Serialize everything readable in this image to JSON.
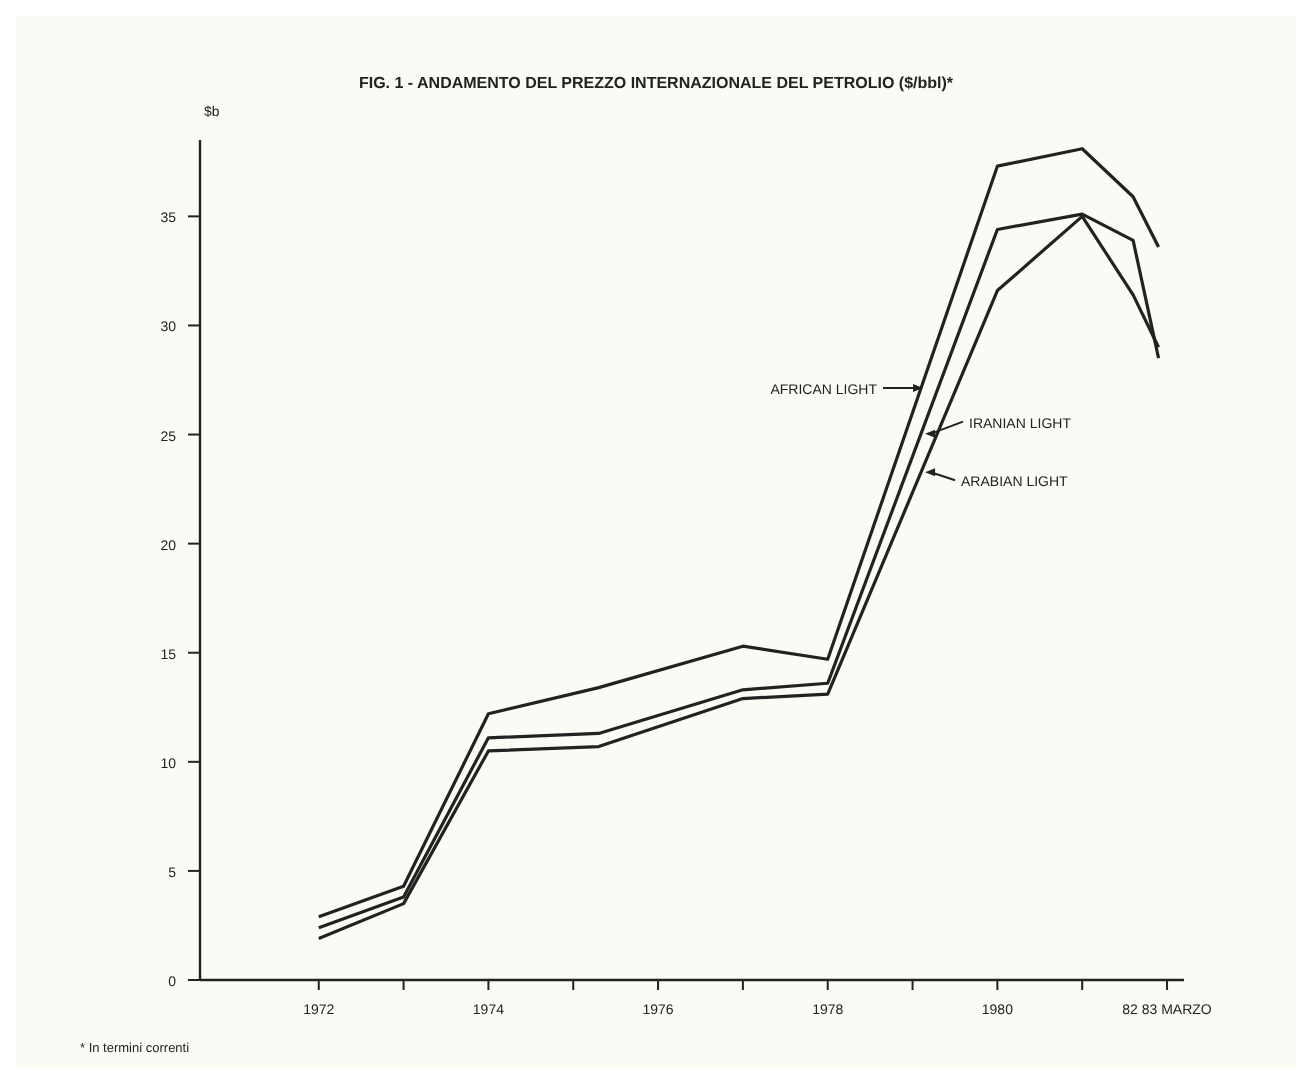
{
  "chart_data": {
    "type": "line",
    "title": "FIG. 1  - ANDAMENTO DEL PREZZO INTERNAZIONALE DEL PETROLIO ($/bbl)*",
    "ylabel": "$b",
    "annotations": [
      "* In termini correnti"
    ],
    "x": [
      1972,
      1973,
      1974,
      1975.3,
      1977,
      1978,
      1980,
      1981,
      1981.6,
      1981.9
    ],
    "series": [
      {
        "name": "AFRICAN LIGHT",
        "color": "#222222",
        "values": [
          2.9,
          4.3,
          12.2,
          13.4,
          15.3,
          14.7,
          37.3,
          38.1,
          35.9,
          33.6
        ]
      },
      {
        "name": "IRANIAN LIGHT",
        "color": "#222222",
        "values": [
          2.4,
          3.8,
          11.1,
          11.3,
          13.3,
          13.6,
          34.4,
          35.1,
          33.9,
          28.5
        ]
      },
      {
        "name": "ARABIAN LIGHT",
        "color": "#222222",
        "values": [
          1.9,
          3.5,
          10.5,
          10.7,
          12.9,
          13.1,
          31.6,
          35.0,
          31.4,
          29.0
        ]
      }
    ],
    "xlim": [
      1970.6,
      1982.2
    ],
    "ylim": [
      0,
      38.5
    ],
    "xticks": [
      1972,
      {
        "value": 1973,
        "label": null
      },
      1974,
      {
        "value": 1975,
        "label": null
      },
      1976,
      {
        "value": 1977,
        "label": null
      },
      1978,
      {
        "value": 1979,
        "label": null
      },
      1980,
      {
        "value": 1981,
        "label": null
      },
      {
        "value": 1982,
        "label": "82 83 MARZO"
      }
    ],
    "yticks": [
      0,
      5,
      10,
      15,
      20,
      25,
      30,
      35
    ],
    "grid": false,
    "legend": "right",
    "marker": "none",
    "line_style": "solid"
  }
}
